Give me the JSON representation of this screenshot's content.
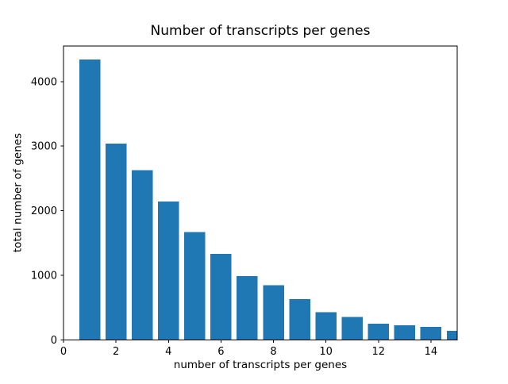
{
  "figure": {
    "background": "#ffffff",
    "text_color": "#000000",
    "spine_color": "#000000"
  },
  "chart_data": {
    "type": "bar",
    "title": "Number of transcripts per genes",
    "xlabel": "number of transcripts per genes",
    "ylabel": "total number of genes",
    "x": [
      1,
      2,
      3,
      4,
      5,
      6,
      7,
      8,
      9,
      10,
      11,
      12,
      13,
      14,
      15
    ],
    "values": [
      4340,
      3040,
      2630,
      2140,
      1670,
      1330,
      990,
      845,
      630,
      430,
      355,
      250,
      230,
      200,
      140
    ],
    "bar_color": "#1f77b4",
    "bar_width": 0.8,
    "xlim": [
      0,
      15
    ],
    "ylim": [
      0,
      4550
    ],
    "xticks": [
      0,
      2,
      4,
      6,
      8,
      10,
      12,
      14
    ],
    "yticks": [
      0,
      1000,
      2000,
      3000,
      4000
    ],
    "grid": false,
    "legend": "none"
  }
}
